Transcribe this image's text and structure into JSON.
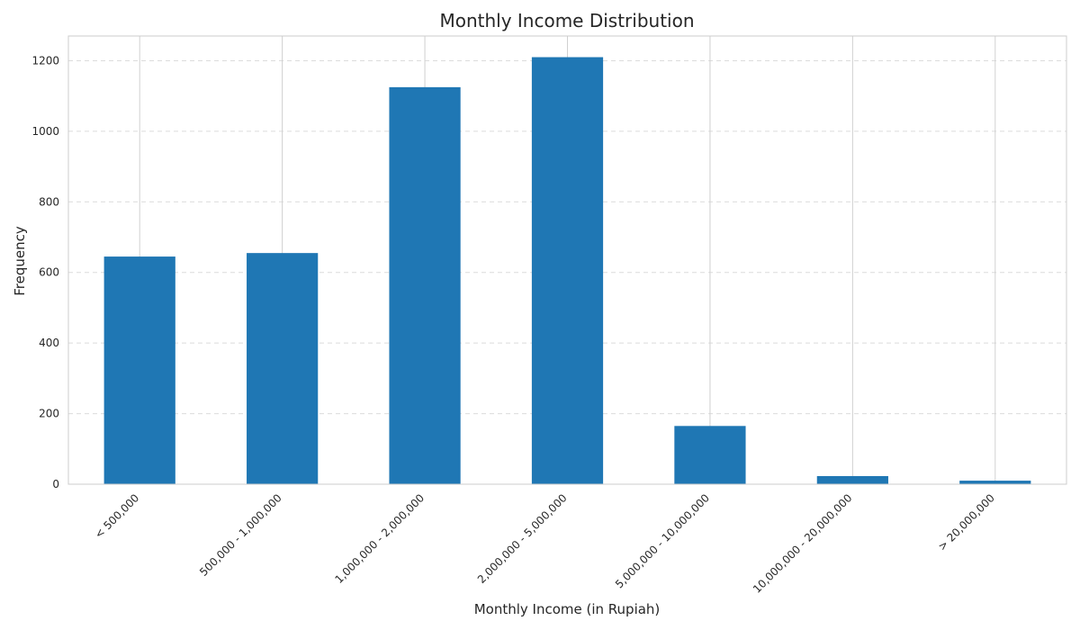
{
  "chart_data": {
    "type": "bar",
    "title": "Monthly Income Distribution",
    "xlabel": "Monthly Income (in Rupiah)",
    "ylabel": "Frequency",
    "categories": [
      "< 500,000",
      "500,000 - 1,000,000",
      "1,000,000 - 2,000,000",
      "2,000,000 - 5,000,000",
      "5,000,000 - 10,000,000",
      "10,000,000 - 20,000,000",
      "> 20,000,000"
    ],
    "values": [
      645,
      655,
      1125,
      1210,
      165,
      23,
      10
    ],
    "ylim": [
      0,
      1270
    ],
    "yticks": [
      0,
      200,
      400,
      600,
      800,
      1000,
      1200
    ],
    "grid": true,
    "bar_color": "#1f77b4"
  }
}
